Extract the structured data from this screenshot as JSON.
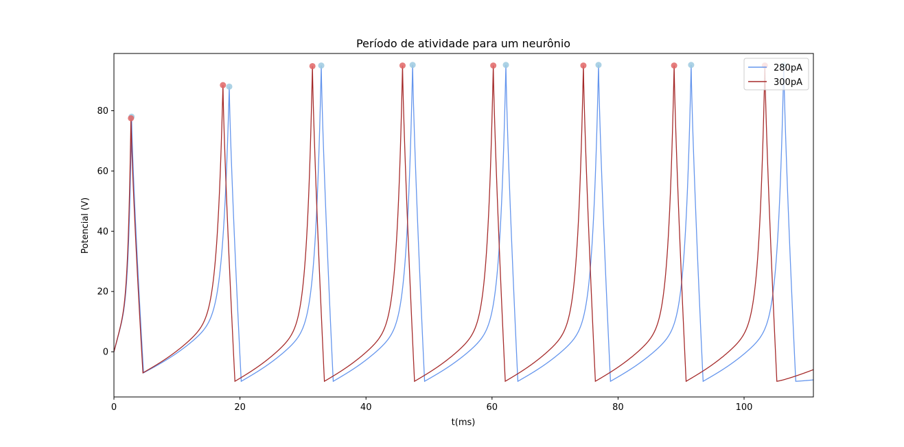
{
  "chart_data": {
    "type": "line",
    "title": "Período de atividade para um neurônio",
    "xlabel": "t(ms)",
    "ylabel": "Potencial (V)",
    "xlim": [
      0,
      111
    ],
    "ylim": [
      -15,
      99
    ],
    "xticks": [
      0,
      20,
      40,
      60,
      80,
      100
    ],
    "yticks": [
      0,
      20,
      40,
      60,
      80
    ],
    "grid": false,
    "legend": "top-right",
    "resting_potential": 0,
    "trough": -9.8,
    "series": [
      {
        "name": "280pA",
        "color": "#6495ed",
        "peak_color": "#9ecae1",
        "first_spike": {
          "t": 2.8,
          "v": 78
        },
        "spikes": [
          {
            "t": 2.8,
            "v": 78.0
          },
          {
            "t": 18.3,
            "v": 88.0
          },
          {
            "t": 32.9,
            "v": 95.0
          },
          {
            "t": 47.4,
            "v": 95.2
          },
          {
            "t": 62.2,
            "v": 95.2
          },
          {
            "t": 76.9,
            "v": 95.2
          },
          {
            "t": 91.6,
            "v": 95.2
          },
          {
            "t": 106.3,
            "v": 95.2
          }
        ],
        "end_value": -7.0
      },
      {
        "name": "300pA",
        "color": "#a52a2a",
        "peak_color": "#e06666",
        "first_spike": {
          "t": 2.7,
          "v": 77.5
        },
        "spikes": [
          {
            "t": 2.7,
            "v": 77.5
          },
          {
            "t": 17.3,
            "v": 88.5
          },
          {
            "t": 31.5,
            "v": 94.8
          },
          {
            "t": 45.8,
            "v": 95.0
          },
          {
            "t": 60.2,
            "v": 95.0
          },
          {
            "t": 74.5,
            "v": 95.0
          },
          {
            "t": 88.9,
            "v": 95.0
          },
          {
            "t": 103.3,
            "v": 95.0
          }
        ],
        "end_value": 0.0
      }
    ]
  }
}
